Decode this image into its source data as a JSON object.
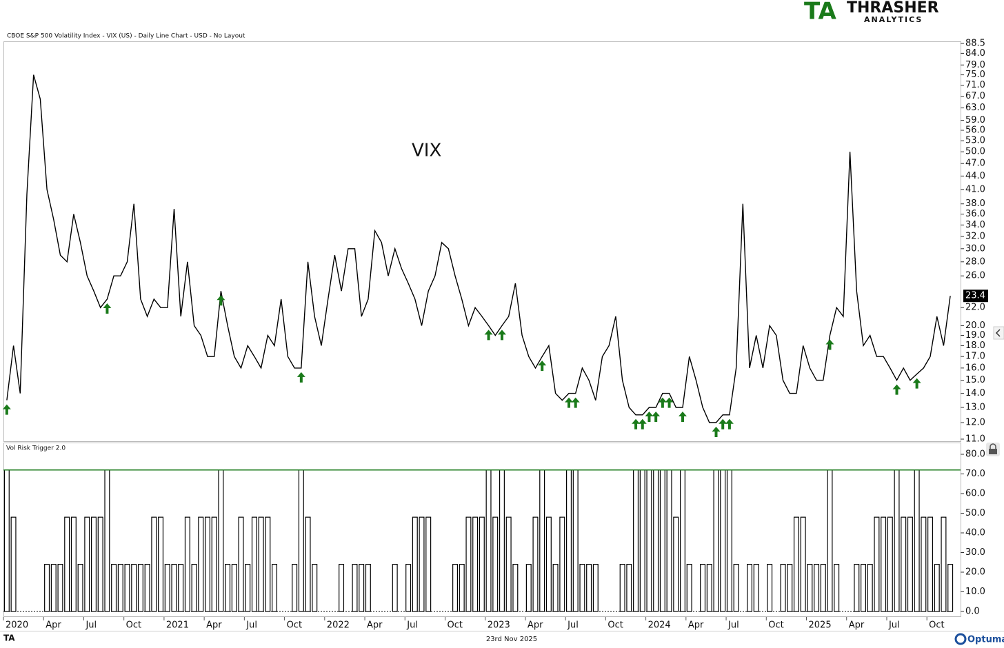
{
  "header": {
    "title": "CBOE S&P 500 Volatility Index - VIX (US) - Daily Line Chart - USD - No Layout",
    "logo_mark": "TA",
    "logo_name": "THRASHER",
    "logo_sub": "ANALYTICS"
  },
  "chart_data": [
    {
      "type": "line",
      "annotation": "VIX",
      "color": "#000000",
      "marker_color": "#1a7a1a",
      "log_scale": true,
      "ylim": [
        11,
        88.5
      ],
      "yticks": [
        {
          "value": 88.5,
          "label": "88.5"
        },
        {
          "value": 84,
          "label": "84.0"
        },
        {
          "value": 79,
          "label": "79.0"
        },
        {
          "value": 75,
          "label": "75.0"
        },
        {
          "value": 71,
          "label": "71.0"
        },
        {
          "value": 67,
          "label": "67.0"
        },
        {
          "value": 63,
          "label": "63.0"
        },
        {
          "value": 59,
          "label": "59.0"
        },
        {
          "value": 56,
          "label": "56.0"
        },
        {
          "value": 53,
          "label": "53.0"
        },
        {
          "value": 50,
          "label": "50.0"
        },
        {
          "value": 47,
          "label": "47.0"
        },
        {
          "value": 44,
          "label": "44.0"
        },
        {
          "value": 41,
          "label": "41.0"
        },
        {
          "value": 38,
          "label": "38.0"
        },
        {
          "value": 36,
          "label": "36.0"
        },
        {
          "value": 34,
          "label": "34.0"
        },
        {
          "value": 32,
          "label": "32.0"
        },
        {
          "value": 30,
          "label": "30.0"
        },
        {
          "value": 28,
          "label": "28.0"
        },
        {
          "value": 26,
          "label": "26.0"
        },
        {
          "value": 22,
          "label": "22.0"
        },
        {
          "value": 20,
          "label": "20.0"
        },
        {
          "value": 19,
          "label": "19.0"
        },
        {
          "value": 18,
          "label": "18.0"
        },
        {
          "value": 17,
          "label": "17.0"
        },
        {
          "value": 16,
          "label": "16.0"
        },
        {
          "value": 15,
          "label": "15.0"
        },
        {
          "value": 14,
          "label": "14.0"
        },
        {
          "value": 13,
          "label": "13.0"
        },
        {
          "value": 12,
          "label": "12.0"
        },
        {
          "value": 11,
          "label": "11.0"
        }
      ],
      "values": [
        13.5,
        18,
        14,
        40,
        75,
        66,
        41,
        35,
        29,
        28,
        36,
        31,
        26,
        24,
        22,
        23,
        26,
        26,
        28,
        38,
        23,
        21,
        23,
        22,
        22,
        37,
        21,
        28,
        20,
        19,
        17,
        17,
        24,
        20,
        17,
        16,
        18,
        17,
        16,
        19,
        18,
        23,
        17,
        16,
        16,
        28,
        21,
        18,
        23,
        29,
        24,
        30,
        30,
        21,
        23,
        33,
        31,
        26,
        30,
        27,
        25,
        23,
        20,
        24,
        26,
        31,
        30,
        26,
        23,
        20,
        22,
        21,
        20,
        19,
        20,
        21,
        25,
        19,
        17,
        16,
        17,
        18,
        14,
        13.5,
        14,
        14,
        16,
        15,
        13.5,
        17,
        18,
        21,
        15,
        13,
        12.5,
        12.5,
        13,
        13,
        14,
        14,
        13,
        13,
        17,
        15,
        13,
        12,
        12,
        12.5,
        12.5,
        16,
        38,
        16,
        19,
        16,
        20,
        19,
        15,
        14,
        14,
        18,
        16,
        15,
        15,
        19,
        22,
        21,
        50,
        24,
        18,
        19,
        17,
        17,
        16,
        15,
        16,
        15,
        15.5,
        16,
        17,
        21,
        18,
        23.4
      ]
    },
    {
      "type": "bar",
      "title": "Vol Risk Trigger 2.0",
      "color": "#000000",
      "threshold": 72,
      "threshold_color": "#1a7a1a",
      "ylim": [
        0,
        80
      ],
      "yticks": [
        {
          "value": 0,
          "label": "0.0"
        },
        {
          "value": 10,
          "label": "10.0"
        },
        {
          "value": 20,
          "label": "20.0"
        },
        {
          "value": 30,
          "label": "30.0"
        },
        {
          "value": 40,
          "label": "40.0"
        },
        {
          "value": 50,
          "label": "50.0"
        },
        {
          "value": 60,
          "label": "60.0"
        },
        {
          "value": 70,
          "label": "70.0"
        },
        {
          "value": 80,
          "label": "80.0"
        }
      ],
      "xlim": [
        "2020-01",
        "2025-12"
      ],
      "xticks": [
        {
          "value": "2020-01",
          "label": "2020"
        },
        {
          "value": "2020-04",
          "label": "Apr"
        },
        {
          "value": "2020-07",
          "label": "Jul"
        },
        {
          "value": "2020-10",
          "label": "Oct"
        },
        {
          "value": "2021-01",
          "label": "2021"
        },
        {
          "value": "2021-04",
          "label": "Apr"
        },
        {
          "value": "2021-07",
          "label": "Jul"
        },
        {
          "value": "2021-10",
          "label": "Oct"
        },
        {
          "value": "2022-01",
          "label": "2022"
        },
        {
          "value": "2022-04",
          "label": "Apr"
        },
        {
          "value": "2022-07",
          "label": "Jul"
        },
        {
          "value": "2022-10",
          "label": "Oct"
        },
        {
          "value": "2023-01",
          "label": "2023"
        },
        {
          "value": "2023-04",
          "label": "Apr"
        },
        {
          "value": "2023-07",
          "label": "Jul"
        },
        {
          "value": "2023-10",
          "label": "Oct"
        },
        {
          "value": "2024-01",
          "label": "2024"
        },
        {
          "value": "2024-04",
          "label": "Apr"
        },
        {
          "value": "2024-07",
          "label": "Jul"
        },
        {
          "value": "2024-10",
          "label": "Oct"
        },
        {
          "value": "2025-01",
          "label": "2025"
        },
        {
          "value": "2025-04",
          "label": "Apr"
        },
        {
          "value": "2025-07",
          "label": "Jul"
        },
        {
          "value": "2025-10",
          "label": "Oct"
        }
      ],
      "values": [
        72,
        48,
        0,
        0,
        0,
        0,
        24,
        24,
        24,
        48,
        48,
        24,
        48,
        48,
        48,
        72,
        24,
        24,
        24,
        24,
        24,
        24,
        48,
        48,
        24,
        24,
        24,
        48,
        24,
        48,
        48,
        48,
        72,
        24,
        24,
        48,
        24,
        48,
        48,
        48,
        24,
        0,
        0,
        24,
        72,
        48,
        24,
        0,
        0,
        0,
        24,
        0,
        24,
        24,
        24,
        0,
        0,
        0,
        24,
        0,
        24,
        48,
        48,
        48,
        0,
        0,
        0,
        24,
        24,
        48,
        48,
        48,
        72,
        48,
        72,
        48,
        24,
        0,
        24,
        48,
        72,
        48,
        24,
        48,
        72,
        72,
        24,
        24,
        24,
        0,
        0,
        0,
        24,
        24,
        72,
        72,
        72,
        72,
        72,
        72,
        48,
        72,
        24,
        0,
        24,
        24,
        72,
        72,
        72,
        24,
        0,
        24,
        24,
        0,
        24,
        0,
        24,
        24,
        48,
        48,
        24,
        24,
        24,
        72,
        24,
        0,
        0,
        24,
        24,
        24,
        48,
        48,
        48,
        72,
        48,
        48,
        72,
        48,
        48,
        24,
        48,
        24
      ]
    }
  ],
  "footer": {
    "mark": "TA",
    "date": "23rd Nov 2025",
    "brand": "Optuma"
  }
}
